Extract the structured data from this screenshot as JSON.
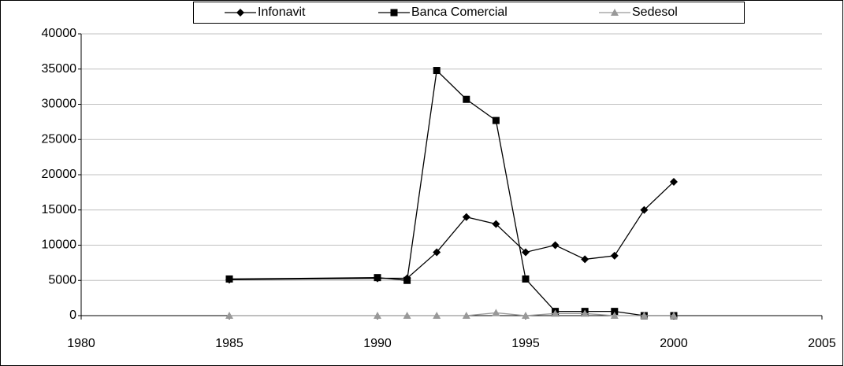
{
  "chart_data": {
    "type": "line",
    "x": [
      1985,
      1990,
      1991,
      1992,
      1993,
      1994,
      1995,
      1996,
      1997,
      1998,
      1999,
      2000
    ],
    "series": [
      {
        "name": "Infonavit",
        "color": "#000000",
        "marker": "diamond",
        "values": [
          5100,
          5300,
          5300,
          9000,
          14000,
          13000,
          9000,
          10000,
          8000,
          8500,
          15000,
          19000
        ]
      },
      {
        "name": "Banca Comercial",
        "color": "#000000",
        "marker": "square",
        "values": [
          5200,
          5400,
          5000,
          34800,
          30700,
          27700,
          5200,
          600,
          600,
          600,
          0,
          0
        ]
      },
      {
        "name": "Sedesol",
        "color": "#999999",
        "marker": "triangle",
        "values": [
          0,
          0,
          0,
          0,
          0,
          400,
          0,
          300,
          300,
          0,
          0,
          0
        ]
      }
    ],
    "xlim": [
      1980,
      2005
    ],
    "xticks": [
      1980,
      1985,
      1990,
      1995,
      2000,
      2005
    ],
    "ylim": [
      0,
      40000
    ],
    "yticks": [
      0,
      5000,
      10000,
      15000,
      20000,
      25000,
      30000,
      35000,
      40000
    ],
    "grid": true,
    "legend": "top"
  }
}
